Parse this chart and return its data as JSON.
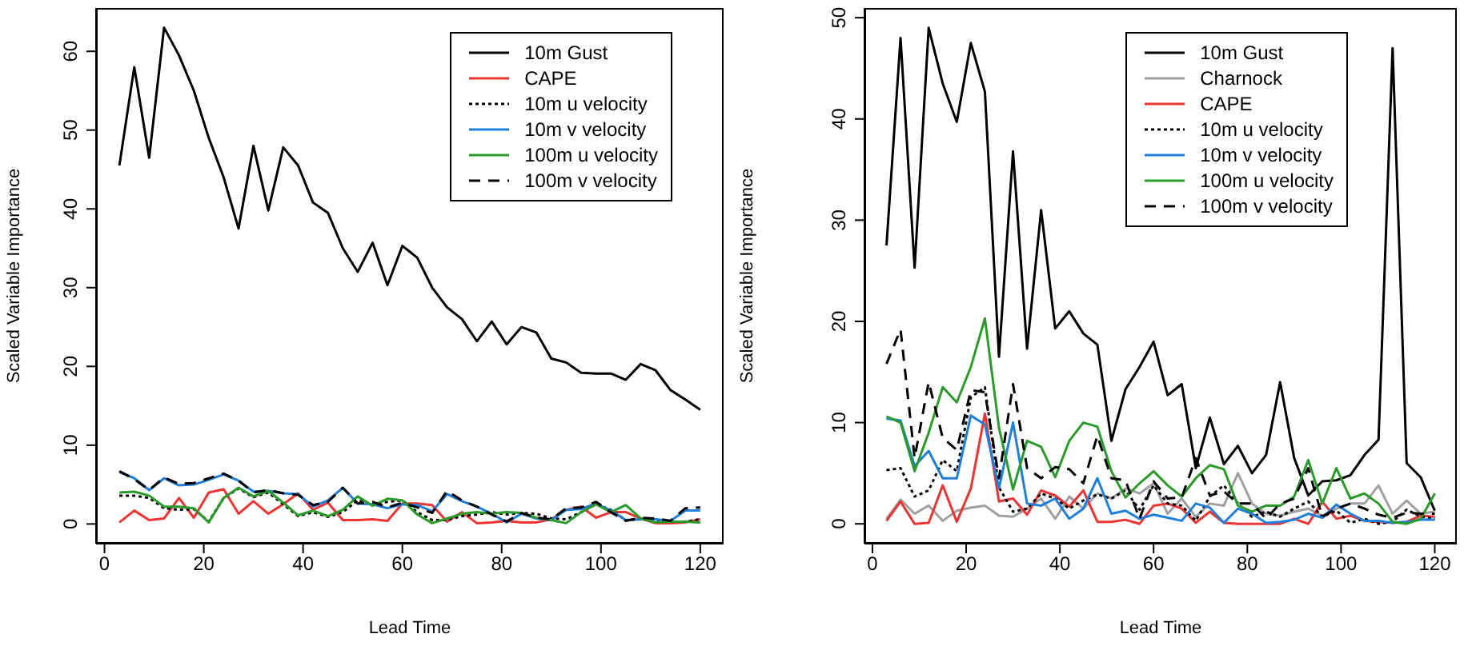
{
  "chart_data": [
    {
      "type": "line",
      "xlabel": "Lead Time",
      "ylabel": "Scaled Variable Importance",
      "x": [
        3,
        6,
        9,
        12,
        15,
        18,
        21,
        24,
        27,
        30,
        33,
        36,
        39,
        42,
        45,
        48,
        51,
        54,
        57,
        60,
        63,
        66,
        69,
        72,
        75,
        78,
        81,
        84,
        87,
        90,
        93,
        96,
        99,
        102,
        105,
        108,
        111,
        114,
        117,
        120
      ],
      "xlim": [
        -1.7,
        124.7
      ],
      "ylim": [
        -2.5,
        65.5
      ],
      "xticks": [
        0,
        20,
        40,
        60,
        80,
        100,
        120
      ],
      "yticks": [
        0,
        10,
        20,
        30,
        40,
        50,
        60
      ],
      "legend": "top right",
      "grid": false,
      "series": [
        {
          "name": "10m Gust",
          "color": "#000000",
          "line_style": "solid",
          "values": [
            45.5,
            58,
            46.5,
            63,
            59.5,
            55,
            49,
            44,
            37.5,
            48,
            39.8,
            47.8,
            45.5,
            40.8,
            39.5,
            35,
            32,
            35.7,
            30.3,
            35.3,
            33.8,
            30,
            27.5,
            26,
            23.2,
            25.7,
            22.8,
            25,
            24.3,
            21,
            20.5,
            19.2,
            19.1,
            19.1,
            18.3,
            20.3,
            19.5,
            17,
            15.8,
            14.5
          ]
        },
        {
          "name": "CAPE",
          "color": "#ee3333",
          "line_style": "solid",
          "values": [
            0.2,
            1.7,
            0.5,
            0.7,
            3.3,
            0.8,
            4,
            4.4,
            1.3,
            2.9,
            1.3,
            2.5,
            3.9,
            1.8,
            2.7,
            0.5,
            0.5,
            0.6,
            0.4,
            2.6,
            2.6,
            2.4,
            0.3,
            1.5,
            0.1,
            0.2,
            0.4,
            0.2,
            0.2,
            0.6,
            1.8,
            2.2,
            0.8,
            1.5,
            1.5,
            0.7,
            0.1,
            0.1,
            0.2,
            0.6
          ]
        },
        {
          "name": "10m u velocity",
          "color": "#000000",
          "line_style": "dotted",
          "values": [
            3.6,
            3.6,
            3.3,
            2,
            1.8,
            1.9,
            0.3,
            3.3,
            4.5,
            3.4,
            4,
            2.5,
            1,
            1.5,
            0.9,
            1.5,
            3,
            2.5,
            2.8,
            3,
            1.5,
            0.5,
            0.5,
            1,
            1.2,
            1.5,
            1.2,
            1.4,
            1.3,
            0.7,
            0.6,
            1.5,
            2.5,
            1.8,
            0.5,
            0.6,
            0.4,
            0.3,
            0.3,
            0.6
          ]
        },
        {
          "name": "10m v velocity",
          "color": "#1e7fdb",
          "line_style": "solid",
          "values": [
            6.6,
            5.8,
            4.3,
            5.8,
            4.9,
            5,
            5.6,
            6.3,
            5.5,
            4.1,
            4.2,
            3.9,
            3.8,
            2.2,
            3,
            4.6,
            2.6,
            2.5,
            2,
            2.5,
            2.4,
            1.6,
            3.8,
            2.9,
            2.2,
            1.3,
            0.2,
            1.3,
            0.7,
            0.5,
            1.8,
            1.9,
            2.6,
            1.7,
            0.5,
            0.6,
            0.6,
            0.4,
            1.7,
            1.7
          ]
        },
        {
          "name": "100m u velocity",
          "color": "#2a9a2a",
          "line_style": "solid",
          "values": [
            4,
            4.1,
            3.6,
            2.2,
            2.2,
            2,
            0.2,
            3.3,
            4.6,
            3.5,
            4.2,
            2.7,
            1.1,
            1.7,
            1,
            1.8,
            3.5,
            2.3,
            3.2,
            3,
            1.2,
            0.1,
            0.7,
            1.3,
            1.5,
            1.3,
            1.5,
            1.4,
            0.8,
            0.5,
            0.1,
            1.5,
            2.5,
            1.5,
            2.4,
            0.7,
            0.2,
            0.3,
            0.3,
            0.2
          ]
        },
        {
          "name": "100m v velocity",
          "color": "#000000",
          "line_style": "dashed",
          "values": [
            6.7,
            5.7,
            4.3,
            5.9,
            5.1,
            5.2,
            5.8,
            6.4,
            5.5,
            4,
            4.3,
            3.9,
            3.7,
            2.4,
            2.8,
            4.6,
            2.6,
            2.8,
            2.1,
            2.7,
            2.1,
            1.4,
            4.2,
            3,
            2.2,
            1.2,
            0.3,
            1.4,
            0.8,
            0.6,
            2,
            2.1,
            2.8,
            1.5,
            0.4,
            0.8,
            0.7,
            0.4,
            2,
            2.1
          ]
        }
      ]
    },
    {
      "type": "line",
      "xlabel": "Lead Time",
      "ylabel": "Scaled Variable Importance",
      "x": [
        3,
        6,
        9,
        12,
        15,
        18,
        21,
        24,
        27,
        30,
        33,
        36,
        39,
        42,
        45,
        48,
        51,
        54,
        57,
        60,
        63,
        66,
        69,
        72,
        75,
        78,
        81,
        84,
        87,
        90,
        93,
        96,
        99,
        102,
        105,
        108,
        111,
        114,
        117,
        120
      ],
      "xlim": [
        -1.7,
        124.7
      ],
      "ylim": [
        -1.96,
        50.96
      ],
      "xticks": [
        0,
        20,
        40,
        60,
        80,
        100,
        120
      ],
      "yticks": [
        0,
        10,
        20,
        30,
        40,
        50
      ],
      "legend": "top right",
      "grid": false,
      "series": [
        {
          "name": "10m Gust",
          "color": "#000000",
          "line_style": "solid",
          "values": [
            27.5,
            48,
            25.3,
            49,
            43.5,
            39.7,
            47.5,
            42.7,
            16.5,
            36.8,
            17.3,
            31,
            19.3,
            21,
            18.8,
            17.7,
            8.2,
            13.3,
            15.5,
            18,
            12.7,
            13.8,
            5.5,
            10.5,
            5.9,
            7.7,
            5,
            6.8,
            14,
            6.5,
            2.8,
            4.2,
            4.3,
            4.8,
            6.8,
            8.3,
            47,
            6,
            4.6,
            1.3
          ]
        },
        {
          "name": "Charnock",
          "color": "#a0a0a0",
          "line_style": "solid",
          "values": [
            0.5,
            2.4,
            1,
            1.8,
            0.3,
            1.3,
            1.6,
            1.8,
            0.8,
            0.7,
            1.5,
            2.5,
            0.5,
            2.7,
            1.5,
            3,
            2.5,
            3.5,
            3,
            4,
            1,
            2.5,
            0.7,
            2,
            1.8,
            5,
            2,
            1,
            0.8,
            1.2,
            1.5,
            0.8,
            1.5,
            2,
            2,
            3.8,
            1,
            2.3,
            1,
            1.2
          ]
        },
        {
          "name": "CAPE",
          "color": "#ee3333",
          "line_style": "solid",
          "values": [
            0.3,
            2.2,
            0,
            0.1,
            3.8,
            0.2,
            3.5,
            10.9,
            2.2,
            2.5,
            0.9,
            3.3,
            2.8,
            1.7,
            3.3,
            0.2,
            0.2,
            0.4,
            0,
            1.8,
            2,
            1.5,
            0.1,
            1.2,
            0.1,
            0,
            0,
            0,
            0,
            0.5,
            0,
            2.2,
            0.5,
            0.8,
            0.3,
            0.2,
            0.1,
            0.2,
            0.8,
            0.7
          ]
        },
        {
          "name": "10m u velocity",
          "color": "#000000",
          "line_style": "dotted",
          "values": [
            5.3,
            5.5,
            2.7,
            3.3,
            6.3,
            5.2,
            12.5,
            13.5,
            3.6,
            1.2,
            1.5,
            3,
            2.5,
            1.5,
            2.3,
            2.9,
            2.5,
            3.3,
            1.4,
            3.8,
            2,
            1.8,
            0.3,
            2.7,
            3.8,
            2,
            0.7,
            1.2,
            0.7,
            1.5,
            2.2,
            0.7,
            1.3,
            0.1,
            0.5,
            0,
            0.2,
            1.4,
            0.7,
            0.5
          ]
        },
        {
          "name": "10m v velocity",
          "color": "#1e7fdb",
          "line_style": "solid",
          "values": [
            10.4,
            10.2,
            5.7,
            7.2,
            4.5,
            4.5,
            10.7,
            9.8,
            3.5,
            10,
            2,
            1.8,
            2.5,
            0.5,
            1.5,
            4.5,
            1,
            1.3,
            0.5,
            0.9,
            0.6,
            0.3,
            2,
            1.6,
            0.1,
            1.5,
            1,
            0.1,
            0.2,
            0.4,
            1,
            0.6,
            1.9,
            1,
            0.3,
            0.3,
            0.1,
            0.2,
            0.4,
            0.4
          ]
        },
        {
          "name": "100m u velocity",
          "color": "#2a9a2a",
          "line_style": "solid",
          "values": [
            10.6,
            10,
            5.2,
            9,
            13.5,
            12,
            15.5,
            20.3,
            9.5,
            3.4,
            8.2,
            7.6,
            4.6,
            8.2,
            10,
            9.6,
            5.2,
            2.6,
            4,
            5.2,
            3.8,
            2.7,
            4.5,
            5.8,
            5.4,
            1.8,
            1.2,
            1.8,
            1.8,
            2.7,
            6.3,
            2,
            5.5,
            2.5,
            3,
            2,
            0.2,
            0,
            0.5,
            3
          ]
        },
        {
          "name": "100m v velocity",
          "color": "#000000",
          "line_style": "dashed",
          "values": [
            15.8,
            19.2,
            6.5,
            14,
            8.5,
            7.3,
            13.2,
            13,
            4.5,
            13.8,
            5.5,
            4.5,
            5.6,
            5.4,
            4,
            8.7,
            4.5,
            4.3,
            0.5,
            4.2,
            2.5,
            2.6,
            6.5,
            2.8,
            3.2,
            2,
            2,
            0.5,
            2,
            2.5,
            5.5,
            0.7,
            1.5,
            2,
            1.5,
            0.9,
            0.6,
            1.1,
            1,
            1
          ]
        }
      ]
    }
  ]
}
